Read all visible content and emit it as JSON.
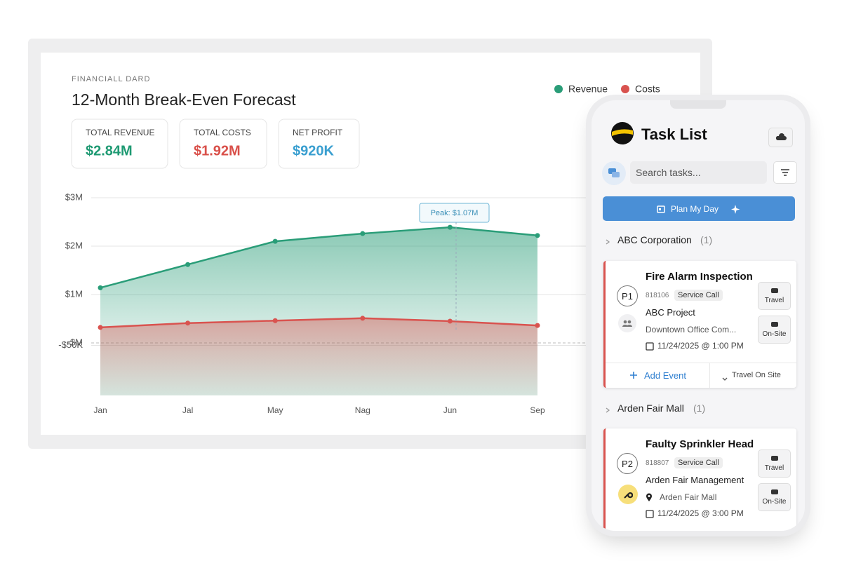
{
  "dashboard": {
    "eyebrow": "FINANCIALL DARD",
    "kpis": [
      {
        "label": "TOTAL REVENUE",
        "value": "$2.84M",
        "color": "#1f9a73"
      },
      {
        "label": "TOTAL COSTS",
        "value": "$1.92M",
        "color": "#d9504a"
      },
      {
        "label": "NET PROFIT",
        "value": "$920K",
        "color": "#3a9fd0"
      }
    ]
  },
  "chart_data": {
    "type": "area",
    "title": "12-Month Break-Even Forecast",
    "categories": [
      "Jan",
      "Jal",
      "May",
      "Nag",
      "Jun",
      "Sep"
    ],
    "series": [
      {
        "name": "Revenue",
        "color": "#2a9d78",
        "values": [
          1.14,
          1.62,
          2.1,
          2.26,
          2.39,
          2.22
        ]
      },
      {
        "name": "Costs",
        "color": "#d9534f",
        "values": [
          0.32,
          0.41,
          0.46,
          0.51,
          0.45,
          0.36
        ]
      }
    ],
    "ylim": [
      -1.2,
      3.1
    ],
    "yticks": [
      {
        "value": 3,
        "label": "$3M"
      },
      {
        "value": 2,
        "label": "$2M"
      },
      {
        "value": 1,
        "label": "$1M"
      },
      {
        "value": 0,
        "label": "-$M"
      },
      {
        "value": -0.05,
        "label": "-$50K"
      }
    ],
    "annotation": "Peak: $1.07M",
    "grid": true,
    "legend": "top-right"
  },
  "task_app": {
    "title": "Task List",
    "search_placeholder": "Search tasks...",
    "plan_button": "Plan My Day",
    "groups": [
      {
        "name": "ABC Corporation",
        "count": "(1)",
        "task": {
          "title": "Fire Alarm Inspection",
          "priority": "P1",
          "id": "818106",
          "tag": "Service Call",
          "project": "ABC Project",
          "location": "Downtown Office Com...",
          "date": "11/24/2025 @ 1:00 PM",
          "travel": "Travel",
          "onsite": "On-Site",
          "add_event": "Add Event",
          "status": "Travel On Site"
        }
      },
      {
        "name": "Arden Fair Mall",
        "count": "(1)",
        "task": {
          "title": "Faulty Sprinkler Head",
          "priority": "P2",
          "id": "818807",
          "tag": "Service Call",
          "project": "Arden Fair Management",
          "location": "Arden Fair Mall",
          "date": "11/24/2025 @ 3:00 PM",
          "travel": "Travel",
          "onsite": "On-Site"
        }
      }
    ]
  }
}
